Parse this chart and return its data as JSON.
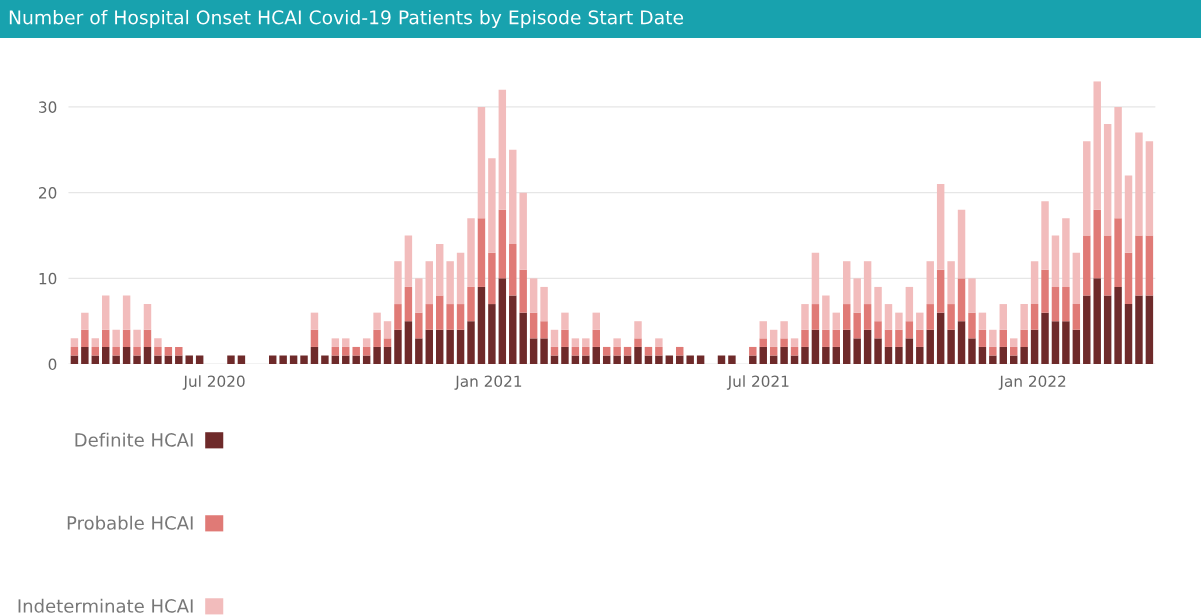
{
  "chart_data": {
    "type": "bar",
    "title": "Number of Hospital Onset HCAI Covid-19 Patients by Episode Start Date",
    "stacked": true,
    "grid": "y",
    "legend": "bottom",
    "x": [
      "2020-03-29",
      "2020-04-05",
      "2020-04-12",
      "2020-04-19",
      "2020-04-26",
      "2020-05-03",
      "2020-05-10",
      "2020-05-17",
      "2020-05-24",
      "2020-05-31",
      "2020-06-07",
      "2020-06-14",
      "2020-06-21",
      "2020-06-28",
      "2020-07-05",
      "2020-07-12",
      "2020-07-19",
      "2020-07-26",
      "2020-08-02",
      "2020-08-09",
      "2020-08-16",
      "2020-08-23",
      "2020-08-30",
      "2020-09-06",
      "2020-09-13",
      "2020-09-20",
      "2020-09-27",
      "2020-10-04",
      "2020-10-11",
      "2020-10-18",
      "2020-10-25",
      "2020-11-01",
      "2020-11-08",
      "2020-11-15",
      "2020-11-22",
      "2020-11-29",
      "2020-12-06",
      "2020-12-13",
      "2020-12-20",
      "2020-12-27",
      "2021-01-03",
      "2021-01-10",
      "2021-01-17",
      "2021-01-24",
      "2021-01-31",
      "2021-02-07",
      "2021-02-14",
      "2021-02-21",
      "2021-02-28",
      "2021-03-07",
      "2021-03-14",
      "2021-03-21",
      "2021-03-28",
      "2021-04-04",
      "2021-04-11",
      "2021-04-18",
      "2021-04-25",
      "2021-05-02",
      "2021-05-09",
      "2021-05-16",
      "2021-05-23",
      "2021-05-30",
      "2021-06-06",
      "2021-06-13",
      "2021-06-20",
      "2021-06-27",
      "2021-07-04",
      "2021-07-11",
      "2021-07-18",
      "2021-07-25",
      "2021-08-01",
      "2021-08-08",
      "2021-08-15",
      "2021-08-22",
      "2021-08-29",
      "2021-09-05",
      "2021-09-12",
      "2021-09-19",
      "2021-09-26",
      "2021-10-03",
      "2021-10-10",
      "2021-10-17",
      "2021-10-24",
      "2021-10-31",
      "2021-11-07",
      "2021-11-14",
      "2021-11-21",
      "2021-11-28",
      "2021-12-05",
      "2021-12-12",
      "2021-12-19",
      "2021-12-26",
      "2022-01-02",
      "2022-01-09",
      "2022-01-16",
      "2022-01-23",
      "2022-01-30",
      "2022-02-06",
      "2022-02-13",
      "2022-02-20",
      "2022-02-27",
      "2022-03-06",
      "2022-03-13",
      "2022-03-20"
    ],
    "series": [
      {
        "name": "Definite HCAI",
        "color": "#6e2a2a",
        "values": [
          1,
          2,
          1,
          2,
          1,
          2,
          1,
          2,
          1,
          1,
          1,
          1,
          1,
          0,
          0,
          1,
          1,
          0,
          0,
          1,
          1,
          1,
          1,
          2,
          1,
          1,
          1,
          1,
          1,
          2,
          2,
          4,
          5,
          3,
          4,
          4,
          4,
          4,
          5,
          9,
          7,
          10,
          8,
          6,
          3,
          3,
          1,
          2,
          1,
          1,
          2,
          1,
          1,
          1,
          2,
          1,
          1,
          1,
          1,
          1,
          1,
          0,
          1,
          1,
          0,
          1,
          2,
          1,
          2,
          1,
          2,
          4,
          2,
          2,
          4,
          3,
          4,
          3,
          2,
          2,
          3,
          2,
          4,
          6,
          4,
          5,
          3,
          2,
          1,
          2,
          1,
          2,
          4,
          6,
          5,
          5,
          4,
          8,
          10,
          8,
          9,
          7,
          8,
          8
        ]
      },
      {
        "name": "Probable HCAI",
        "color": "#e07a76",
        "values": [
          1,
          2,
          1,
          2,
          1,
          2,
          1,
          2,
          1,
          1,
          1,
          0,
          0,
          0,
          0,
          0,
          0,
          0,
          0,
          0,
          0,
          0,
          0,
          2,
          0,
          1,
          1,
          1,
          1,
          2,
          1,
          3,
          4,
          3,
          3,
          4,
          3,
          3,
          4,
          8,
          6,
          8,
          6,
          5,
          3,
          2,
          1,
          2,
          1,
          1,
          2,
          1,
          1,
          1,
          1,
          1,
          1,
          0,
          1,
          0,
          0,
          0,
          0,
          0,
          0,
          1,
          1,
          1,
          1,
          1,
          2,
          3,
          2,
          2,
          3,
          3,
          3,
          2,
          2,
          2,
          2,
          2,
          3,
          5,
          3,
          5,
          3,
          2,
          1,
          2,
          1,
          2,
          3,
          5,
          4,
          4,
          3,
          7,
          8,
          7,
          8,
          6,
          7,
          7
        ]
      },
      {
        "name": "Indeterminate HCAI",
        "color": "#f2bcbc",
        "values": [
          1,
          2,
          1,
          4,
          2,
          4,
          2,
          3,
          1,
          0,
          0,
          0,
          0,
          0,
          0,
          0,
          0,
          0,
          0,
          0,
          0,
          0,
          0,
          2,
          0,
          1,
          1,
          0,
          1,
          2,
          2,
          5,
          6,
          4,
          5,
          6,
          5,
          6,
          8,
          13,
          11,
          14,
          11,
          9,
          4,
          4,
          2,
          2,
          1,
          1,
          2,
          0,
          1,
          0,
          2,
          0,
          1,
          0,
          0,
          0,
          0,
          0,
          0,
          0,
          0,
          0,
          2,
          2,
          2,
          1,
          3,
          6,
          4,
          2,
          5,
          4,
          5,
          4,
          3,
          2,
          4,
          2,
          5,
          10,
          5,
          8,
          4,
          2,
          2,
          3,
          1,
          3,
          5,
          8,
          6,
          8,
          6,
          11,
          15,
          13,
          13,
          9,
          12,
          11
        ]
      }
    ],
    "xlim": [
      "2020-03-25",
      "2022-03-24"
    ],
    "xticks": [
      {
        "value": "2020-07-01",
        "label": "Jul 2020"
      },
      {
        "value": "2021-01-01",
        "label": "Jan 2021"
      },
      {
        "value": "2021-07-01",
        "label": "Jul 2021"
      },
      {
        "value": "2022-01-01",
        "label": "Jan 2022"
      }
    ],
    "ylim": [
      0,
      33
    ],
    "yticks": [
      0,
      10,
      20,
      30
    ]
  }
}
